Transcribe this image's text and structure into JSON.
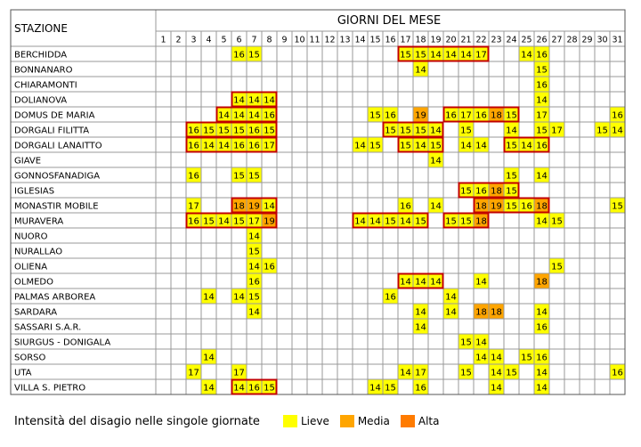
{
  "header": {
    "station_label": "STAZIONE",
    "days_label": "GIORNI DEL MESE"
  },
  "days": [
    "1",
    "2",
    "3",
    "4",
    "5",
    "6",
    "7",
    "8",
    "9",
    "10",
    "11",
    "12",
    "13",
    "14",
    "15",
    "16",
    "17",
    "18",
    "19",
    "20",
    "21",
    "22",
    "23",
    "24",
    "25",
    "26",
    "27",
    "28",
    "29",
    "30",
    "31"
  ],
  "levels": {
    "lieve": "#ffff00",
    "media": "#ffa500",
    "alta": "#ff7b00",
    "alert_border": "#c00000",
    "grid": "#999999"
  },
  "stations": [
    {
      "name": "BERCHIDDA",
      "cells": [
        [
          6,
          "16",
          "lieve"
        ],
        [
          7,
          "15",
          "lieve"
        ],
        [
          17,
          "15",
          "lieve"
        ],
        [
          18,
          "15",
          "lieve"
        ],
        [
          19,
          "14",
          "lieve"
        ],
        [
          20,
          "14",
          "lieve"
        ],
        [
          21,
          "14",
          "lieve"
        ],
        [
          22,
          "17",
          "lieve"
        ],
        [
          25,
          "14",
          "lieve"
        ],
        [
          26,
          "16",
          "lieve"
        ]
      ],
      "boxes": [
        [
          17,
          22
        ]
      ]
    },
    {
      "name": "BONNANARO",
      "cells": [
        [
          18,
          "14",
          "lieve"
        ],
        [
          26,
          "15",
          "lieve"
        ]
      ],
      "boxes": []
    },
    {
      "name": "CHIARAMONTI",
      "cells": [
        [
          26,
          "16",
          "lieve"
        ]
      ],
      "boxes": []
    },
    {
      "name": "DOLIANOVA",
      "cells": [
        [
          6,
          "14",
          "lieve"
        ],
        [
          7,
          "14",
          "lieve"
        ],
        [
          8,
          "14",
          "lieve"
        ],
        [
          26,
          "14",
          "lieve"
        ]
      ],
      "boxes": [
        [
          6,
          8
        ]
      ]
    },
    {
      "name": "DOMUS DE MARIA",
      "cells": [
        [
          5,
          "14",
          "lieve"
        ],
        [
          6,
          "14",
          "lieve"
        ],
        [
          7,
          "14",
          "lieve"
        ],
        [
          8,
          "16",
          "lieve"
        ],
        [
          15,
          "15",
          "lieve"
        ],
        [
          16,
          "16",
          "lieve"
        ],
        [
          18,
          "19",
          "media"
        ],
        [
          20,
          "16",
          "lieve"
        ],
        [
          21,
          "17",
          "lieve"
        ],
        [
          22,
          "16",
          "lieve"
        ],
        [
          23,
          "18",
          "media"
        ],
        [
          24,
          "15",
          "lieve"
        ],
        [
          26,
          "17",
          "lieve"
        ],
        [
          31,
          "16",
          "lieve"
        ]
      ],
      "boxes": [
        [
          5,
          8
        ],
        [
          20,
          24
        ]
      ]
    },
    {
      "name": "DORGALI FILITTA",
      "cells": [
        [
          3,
          "16",
          "lieve"
        ],
        [
          4,
          "15",
          "lieve"
        ],
        [
          5,
          "15",
          "lieve"
        ],
        [
          6,
          "15",
          "lieve"
        ],
        [
          7,
          "16",
          "lieve"
        ],
        [
          8,
          "15",
          "lieve"
        ],
        [
          16,
          "15",
          "lieve"
        ],
        [
          17,
          "15",
          "lieve"
        ],
        [
          18,
          "15",
          "lieve"
        ],
        [
          19,
          "14",
          "lieve"
        ],
        [
          21,
          "15",
          "lieve"
        ],
        [
          24,
          "14",
          "lieve"
        ],
        [
          26,
          "15",
          "lieve"
        ],
        [
          27,
          "17",
          "lieve"
        ],
        [
          30,
          "15",
          "lieve"
        ],
        [
          31,
          "14",
          "lieve"
        ]
      ],
      "boxes": [
        [
          3,
          8
        ],
        [
          16,
          19
        ]
      ]
    },
    {
      "name": "DORGALI LANAITTO",
      "cells": [
        [
          3,
          "16",
          "lieve"
        ],
        [
          4,
          "14",
          "lieve"
        ],
        [
          5,
          "14",
          "lieve"
        ],
        [
          6,
          "16",
          "lieve"
        ],
        [
          7,
          "16",
          "lieve"
        ],
        [
          8,
          "17",
          "lieve"
        ],
        [
          14,
          "14",
          "lieve"
        ],
        [
          15,
          "15",
          "lieve"
        ],
        [
          17,
          "15",
          "lieve"
        ],
        [
          18,
          "14",
          "lieve"
        ],
        [
          19,
          "15",
          "lieve"
        ],
        [
          21,
          "14",
          "lieve"
        ],
        [
          22,
          "14",
          "lieve"
        ],
        [
          24,
          "15",
          "lieve"
        ],
        [
          25,
          "14",
          "lieve"
        ],
        [
          26,
          "16",
          "lieve"
        ]
      ],
      "boxes": [
        [
          3,
          8
        ],
        [
          17,
          19
        ],
        [
          24,
          26
        ]
      ]
    },
    {
      "name": "GIAVE",
      "cells": [
        [
          19,
          "14",
          "lieve"
        ]
      ],
      "boxes": []
    },
    {
      "name": "GONNOSFANADIGA",
      "cells": [
        [
          3,
          "16",
          "lieve"
        ],
        [
          6,
          "15",
          "lieve"
        ],
        [
          7,
          "15",
          "lieve"
        ],
        [
          24,
          "15",
          "lieve"
        ],
        [
          26,
          "14",
          "lieve"
        ]
      ],
      "boxes": []
    },
    {
      "name": "IGLESIAS",
      "cells": [
        [
          21,
          "15",
          "lieve"
        ],
        [
          22,
          "16",
          "lieve"
        ],
        [
          23,
          "18",
          "media"
        ],
        [
          24,
          "15",
          "lieve"
        ]
      ],
      "boxes": [
        [
          21,
          24
        ]
      ]
    },
    {
      "name": "MONASTIR MOBILE",
      "cells": [
        [
          3,
          "17",
          "lieve"
        ],
        [
          6,
          "18",
          "media"
        ],
        [
          7,
          "19",
          "media"
        ],
        [
          8,
          "14",
          "lieve"
        ],
        [
          17,
          "16",
          "lieve"
        ],
        [
          19,
          "14",
          "lieve"
        ],
        [
          22,
          "18",
          "media"
        ],
        [
          23,
          "19",
          "media"
        ],
        [
          24,
          "15",
          "lieve"
        ],
        [
          25,
          "16",
          "lieve"
        ],
        [
          26,
          "18",
          "media"
        ],
        [
          31,
          "15",
          "lieve"
        ]
      ],
      "boxes": [
        [
          6,
          8
        ],
        [
          22,
          26
        ]
      ]
    },
    {
      "name": "MURAVERA",
      "cells": [
        [
          3,
          "16",
          "lieve"
        ],
        [
          4,
          "15",
          "lieve"
        ],
        [
          5,
          "14",
          "lieve"
        ],
        [
          6,
          "15",
          "lieve"
        ],
        [
          7,
          "17",
          "lieve"
        ],
        [
          8,
          "19",
          "media"
        ],
        [
          14,
          "14",
          "lieve"
        ],
        [
          15,
          "14",
          "lieve"
        ],
        [
          16,
          "15",
          "lieve"
        ],
        [
          17,
          "14",
          "lieve"
        ],
        [
          18,
          "15",
          "lieve"
        ],
        [
          20,
          "15",
          "lieve"
        ],
        [
          21,
          "15",
          "lieve"
        ],
        [
          22,
          "18",
          "media"
        ],
        [
          26,
          "14",
          "lieve"
        ],
        [
          27,
          "15",
          "lieve"
        ]
      ],
      "boxes": [
        [
          3,
          8
        ],
        [
          14,
          18
        ],
        [
          20,
          22
        ]
      ]
    },
    {
      "name": "NUORO",
      "cells": [
        [
          7,
          "14",
          "lieve"
        ]
      ],
      "boxes": []
    },
    {
      "name": "NURALLAO",
      "cells": [
        [
          7,
          "15",
          "lieve"
        ]
      ],
      "boxes": []
    },
    {
      "name": "OLIENA",
      "cells": [
        [
          7,
          "14",
          "lieve"
        ],
        [
          8,
          "16",
          "lieve"
        ],
        [
          27,
          "15",
          "lieve"
        ]
      ],
      "boxes": []
    },
    {
      "name": "OLMEDO",
      "cells": [
        [
          7,
          "16",
          "lieve"
        ],
        [
          17,
          "14",
          "lieve"
        ],
        [
          18,
          "14",
          "lieve"
        ],
        [
          19,
          "14",
          "lieve"
        ],
        [
          22,
          "14",
          "lieve"
        ],
        [
          26,
          "18",
          "media"
        ]
      ],
      "boxes": [
        [
          17,
          19
        ]
      ]
    },
    {
      "name": "PALMAS ARBOREA",
      "cells": [
        [
          4,
          "14",
          "lieve"
        ],
        [
          6,
          "14",
          "lieve"
        ],
        [
          7,
          "15",
          "lieve"
        ],
        [
          16,
          "16",
          "lieve"
        ],
        [
          20,
          "14",
          "lieve"
        ]
      ],
      "boxes": []
    },
    {
      "name": "SARDARA",
      "cells": [
        [
          7,
          "14",
          "lieve"
        ],
        [
          18,
          "14",
          "lieve"
        ],
        [
          20,
          "14",
          "lieve"
        ],
        [
          22,
          "18",
          "media"
        ],
        [
          23,
          "18",
          "media"
        ],
        [
          26,
          "14",
          "lieve"
        ]
      ],
      "boxes": []
    },
    {
      "name": "SASSARI S.A.R.",
      "cells": [
        [
          18,
          "14",
          "lieve"
        ],
        [
          26,
          "16",
          "lieve"
        ]
      ],
      "boxes": []
    },
    {
      "name": "SIURGUS - DONIGALA",
      "cells": [
        [
          21,
          "15",
          "lieve"
        ],
        [
          22,
          "14",
          "lieve"
        ]
      ],
      "boxes": []
    },
    {
      "name": "SORSO",
      "cells": [
        [
          4,
          "14",
          "lieve"
        ],
        [
          22,
          "14",
          "lieve"
        ],
        [
          23,
          "14",
          "lieve"
        ],
        [
          25,
          "15",
          "lieve"
        ],
        [
          26,
          "16",
          "lieve"
        ]
      ],
      "boxes": []
    },
    {
      "name": "UTA",
      "cells": [
        [
          3,
          "17",
          "lieve"
        ],
        [
          6,
          "17",
          "lieve"
        ],
        [
          17,
          "14",
          "lieve"
        ],
        [
          18,
          "17",
          "lieve"
        ],
        [
          21,
          "15",
          "lieve"
        ],
        [
          23,
          "14",
          "lieve"
        ],
        [
          24,
          "15",
          "lieve"
        ],
        [
          26,
          "14",
          "lieve"
        ],
        [
          31,
          "16",
          "lieve"
        ]
      ],
      "boxes": []
    },
    {
      "name": "VILLA S. PIETRO",
      "cells": [
        [
          4,
          "14",
          "lieve"
        ],
        [
          6,
          "14",
          "lieve"
        ],
        [
          7,
          "16",
          "lieve"
        ],
        [
          8,
          "15",
          "lieve"
        ],
        [
          15,
          "14",
          "lieve"
        ],
        [
          16,
          "15",
          "lieve"
        ],
        [
          18,
          "16",
          "lieve"
        ],
        [
          23,
          "14",
          "lieve"
        ],
        [
          26,
          "14",
          "lieve"
        ]
      ],
      "boxes": [
        [
          6,
          8
        ]
      ]
    }
  ],
  "legend": {
    "title": "Intensità del disagio nelle singole giornate",
    "items": [
      {
        "label": "Lieve",
        "level": "lieve"
      },
      {
        "label": "Media",
        "level": "media"
      },
      {
        "label": "Alta",
        "level": "alta"
      }
    ]
  }
}
